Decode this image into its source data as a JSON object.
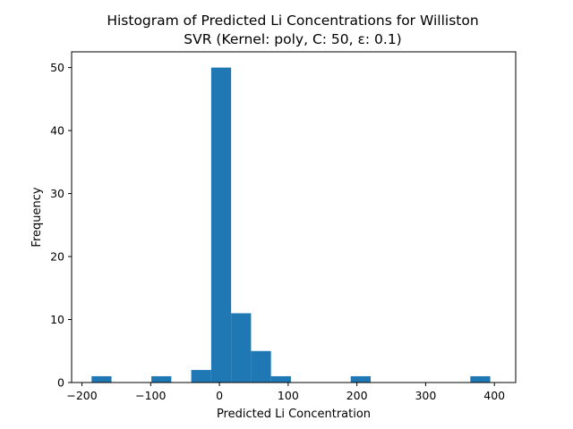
{
  "chart_data": {
    "type": "bar",
    "subtype": "histogram",
    "title": "Histogram of Predicted Li Concentrations for Williston",
    "subtitle": "SVR (Kernel: poly, C: 50, ε: 0.1)",
    "xlabel": "Predicted Li Concentration",
    "ylabel": "Frequency",
    "xlim": [
      -215,
      431
    ],
    "ylim": [
      0,
      52.5
    ],
    "xticks": [
      -200,
      -100,
      0,
      100,
      200,
      300,
      400
    ],
    "xtick_labels": [
      "−200",
      "−100",
      "0",
      "100",
      "200",
      "300",
      "400"
    ],
    "yticks": [
      0,
      10,
      20,
      30,
      40,
      50
    ],
    "ytick_labels": [
      "0",
      "10",
      "20",
      "30",
      "40",
      "50"
    ],
    "bar_color": "#1f77b4",
    "grid": false,
    "bins": [
      {
        "x0": -186,
        "x1": -157,
        "count": 1
      },
      {
        "x0": -157,
        "x1": -128,
        "count": 0
      },
      {
        "x0": -128,
        "x1": -99,
        "count": 0
      },
      {
        "x0": -99,
        "x1": -70,
        "count": 1
      },
      {
        "x0": -70,
        "x1": -41,
        "count": 0
      },
      {
        "x0": -41,
        "x1": -12,
        "count": 2
      },
      {
        "x0": -12,
        "x1": 17,
        "count": 50
      },
      {
        "x0": 17,
        "x1": 46,
        "count": 11
      },
      {
        "x0": 46,
        "x1": 75,
        "count": 5
      },
      {
        "x0": 75,
        "x1": 104,
        "count": 1
      },
      {
        "x0": 104,
        "x1": 133,
        "count": 0
      },
      {
        "x0": 133,
        "x1": 162,
        "count": 0
      },
      {
        "x0": 162,
        "x1": 191,
        "count": 0
      },
      {
        "x0": 191,
        "x1": 220,
        "count": 1
      },
      {
        "x0": 220,
        "x1": 249,
        "count": 0
      },
      {
        "x0": 249,
        "x1": 278,
        "count": 0
      },
      {
        "x0": 278,
        "x1": 307,
        "count": 0
      },
      {
        "x0": 307,
        "x1": 336,
        "count": 0
      },
      {
        "x0": 336,
        "x1": 365,
        "count": 0
      },
      {
        "x0": 365,
        "x1": 394,
        "count": 1
      }
    ]
  }
}
